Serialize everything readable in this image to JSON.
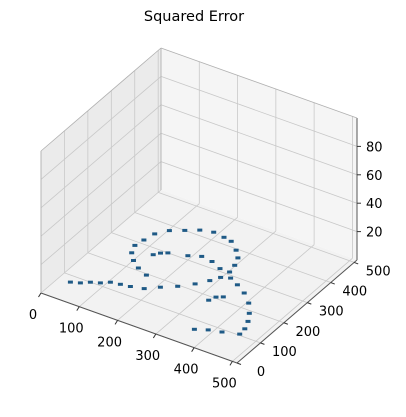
{
  "chart_data": {
    "type": "surface3d",
    "title": "Squared Error",
    "xlabel": "",
    "ylabel": "",
    "zlabel": "",
    "x_ticks": [
      0,
      100,
      200,
      300,
      400,
      500
    ],
    "y_ticks": [
      0,
      100,
      200,
      300,
      400,
      500
    ],
    "z_ticks": [
      20,
      40,
      60,
      80
    ],
    "xlim": [
      0,
      512
    ],
    "ylim": [
      0,
      512
    ],
    "zlim": [
      0,
      100
    ],
    "grid": true,
    "pane_color": "#f2f2f2",
    "grid_color": "#c8c8c8",
    "series": [
      {
        "color": "#1f5a86",
        "points": [
          [
            40,
            60,
            3
          ],
          [
            60,
            70,
            3
          ],
          [
            80,
            80,
            4
          ],
          [
            100,
            90,
            4
          ],
          [
            120,
            100,
            5
          ],
          [
            140,
            110,
            4
          ],
          [
            160,
            120,
            3
          ],
          [
            190,
            130,
            3
          ],
          [
            220,
            150,
            4
          ],
          [
            250,
            175,
            4
          ],
          [
            280,
            200,
            5
          ],
          [
            300,
            230,
            5
          ],
          [
            310,
            260,
            4
          ],
          [
            315,
            290,
            4
          ],
          [
            310,
            320,
            4
          ],
          [
            300,
            350,
            4
          ],
          [
            280,
            375,
            4
          ],
          [
            255,
            395,
            5
          ],
          [
            230,
            405,
            4
          ],
          [
            200,
            410,
            4
          ],
          [
            170,
            400,
            4
          ],
          [
            140,
            385,
            3
          ],
          [
            115,
            360,
            4
          ],
          [
            95,
            330,
            4
          ],
          [
            85,
            300,
            3
          ],
          [
            80,
            270,
            3
          ],
          [
            90,
            240,
            3
          ],
          [
            110,
            215,
            3
          ],
          [
            135,
            195,
            3
          ],
          [
            165,
            180,
            3
          ],
          [
            200,
            300,
            3
          ],
          [
            230,
            310,
            4
          ],
          [
            260,
            305,
            4
          ],
          [
            290,
            290,
            4
          ],
          [
            330,
            270,
            4
          ],
          [
            360,
            250,
            5
          ],
          [
            390,
            230,
            5
          ],
          [
            420,
            200,
            5
          ],
          [
            440,
            170,
            4
          ],
          [
            455,
            140,
            4
          ],
          [
            465,
            110,
            4
          ],
          [
            470,
            80,
            5
          ],
          [
            430,
            70,
            4
          ],
          [
            400,
            60,
            4
          ],
          [
            370,
            50,
            3
          ],
          [
            140,
            250,
            5
          ],
          [
            150,
            265,
            5
          ],
          [
            160,
            280,
            4
          ],
          [
            340,
            160,
            5
          ],
          [
            350,
            175,
            6
          ],
          [
            360,
            190,
            5
          ]
        ]
      }
    ]
  }
}
